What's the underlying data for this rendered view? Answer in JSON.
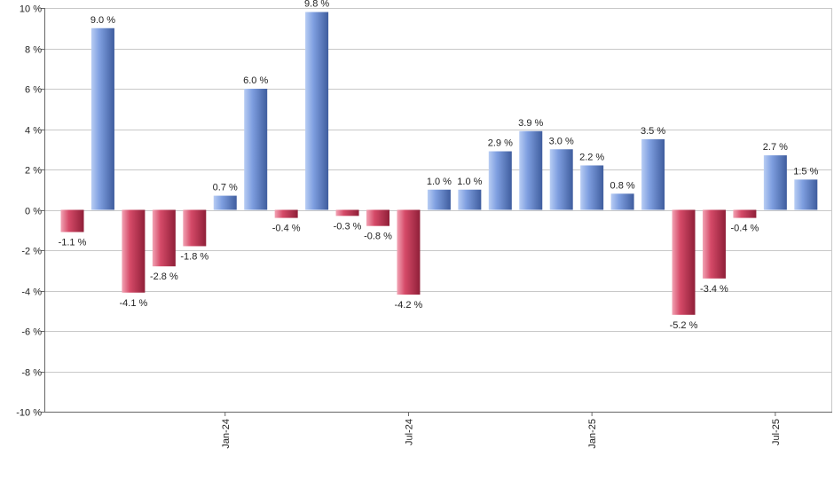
{
  "chart_data": {
    "type": "bar",
    "title": "",
    "xlabel": "",
    "ylabel": "",
    "ylim": [
      -10,
      10
    ],
    "yticks": [
      10,
      8,
      6,
      4,
      2,
      0,
      -2,
      -4,
      -6,
      -8,
      -10
    ],
    "ytick_labels": [
      "10 %",
      "8 %",
      "6 %",
      "4 %",
      "2 %",
      "0 %",
      "-2 %",
      "-4 %",
      "-6 %",
      "-8 %",
      "-10 %"
    ],
    "grid": true,
    "values": [
      -1.1,
      9.0,
      -4.1,
      -2.8,
      -1.8,
      0.7,
      6.0,
      -0.4,
      9.8,
      -0.3,
      -0.8,
      -4.2,
      1.0,
      1.0,
      2.9,
      3.9,
      3.0,
      2.2,
      0.8,
      3.5,
      -5.2,
      -3.4,
      -0.4,
      2.7,
      1.5
    ],
    "value_labels": [
      "-1.1 %",
      "9.0 %",
      "-4.1 %",
      "-2.8 %",
      "-1.8 %",
      "0.7 %",
      "6.0 %",
      "-0.4 %",
      "9.8 %",
      "-0.3 %",
      "-0.8 %",
      "-4.2 %",
      "1.0 %",
      "1.0 %",
      "2.9 %",
      "3.9 %",
      "3.0 %",
      "2.2 %",
      "0.8 %",
      "3.5 %",
      "-5.2 %",
      "-3.4 %",
      "-0.4 %",
      "2.7 %",
      "1.5 %"
    ],
    "x_tick_labels": [
      {
        "label": "Jan-24",
        "index": 5
      },
      {
        "label": "Jul-24",
        "index": 11
      },
      {
        "label": "Jan-25",
        "index": 17
      },
      {
        "label": "Jul-25",
        "index": 23
      }
    ],
    "colors": {
      "positive_light": "#b8cdf4",
      "positive_mid": "#7f9fe0",
      "positive_dark": "#3f5d9e",
      "negative_light": "#f2a3b4",
      "negative_mid": "#d54a68",
      "negative_dark": "#8f1f38",
      "grid": "#c8c8c8",
      "axis": "#666666"
    }
  }
}
